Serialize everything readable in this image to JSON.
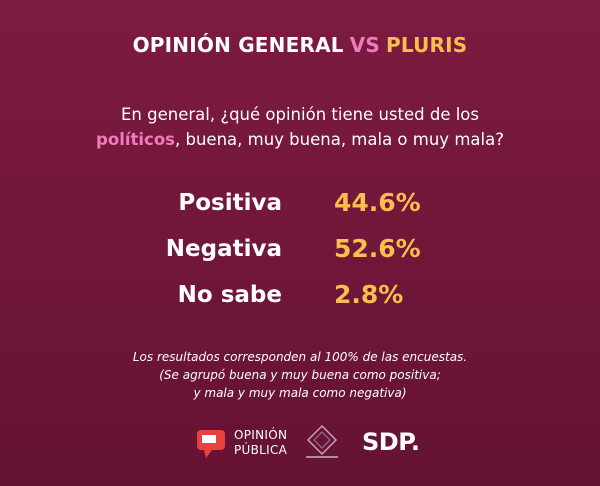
{
  "header": {
    "title": [
      "OPINIÓN GENERAL",
      "VS",
      "PLURIS"
    ]
  },
  "question": {
    "line1": "En general, ¿qué opinión tiene usted de los",
    "line2": [
      "políticos",
      ", buena, muy buena, mala o muy mala?"
    ]
  },
  "results": [
    {
      "label": "Positiva",
      "value": "44.6%"
    },
    {
      "label": "Negativa",
      "value": "52.6%"
    },
    {
      "label": "No sabe",
      "value": "2.8%"
    }
  ],
  "footnote": [
    "Los resultados corresponden al 100% de las encuestas.",
    "(Se agrupó buena y muy buena como positiva;",
    "y mala y muy mala como negativa)"
  ],
  "logos": {
    "opinion_publica": [
      "OPINIÓN",
      "PÚBLICA"
    ],
    "sdp": "SDP."
  }
}
